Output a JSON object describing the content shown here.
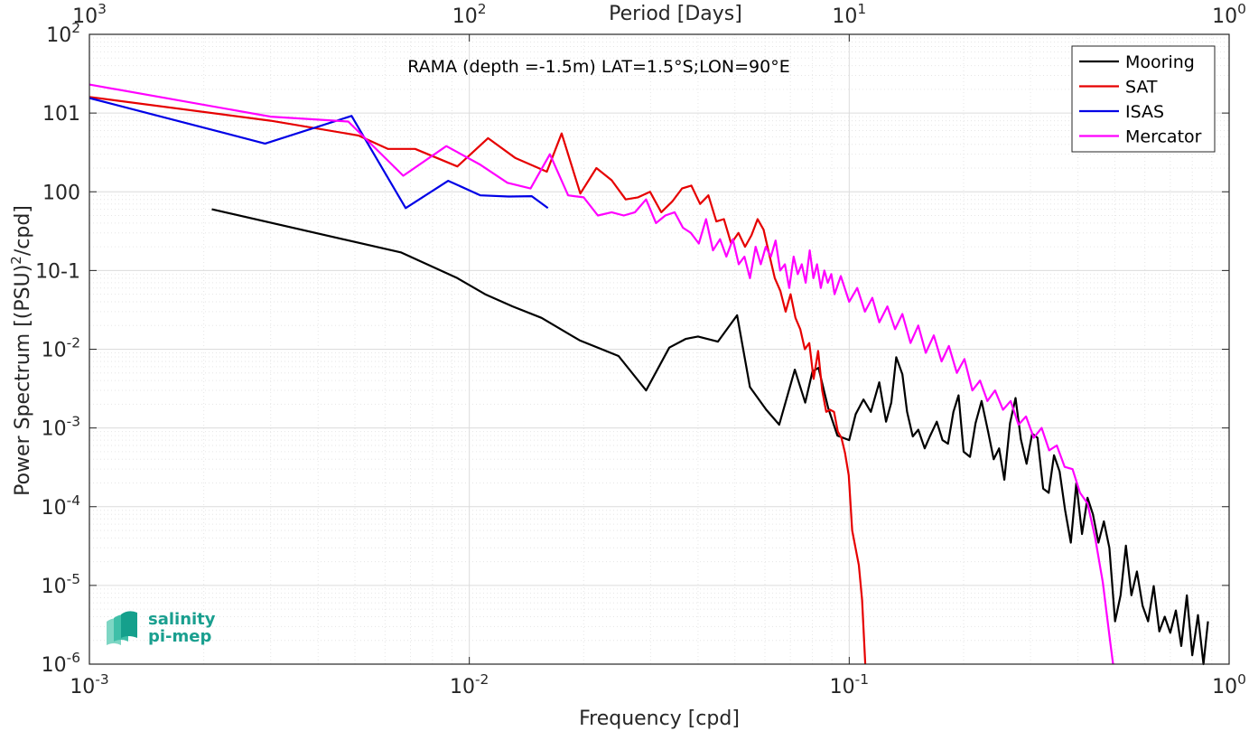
{
  "chart_data": {
    "type": "line",
    "title": "RAMA (depth =-1.5m) LAT=1.5°S;LON=90°E",
    "xlabel": "Frequency [cpd]",
    "ylabel": "Power Spectrum [(PSU)²/cpd]",
    "top_xlabel": "Period [Days]",
    "xscale": "log",
    "yscale": "log",
    "xlim": [
      0.001,
      1
    ],
    "ylim": [
      1e-06,
      100
    ],
    "grid": true,
    "legend_position": "top-right",
    "x_ticks": [
      {
        "value": 0.001,
        "base": "10",
        "exp": "-3"
      },
      {
        "value": 0.01,
        "base": "10",
        "exp": "-2"
      },
      {
        "value": 0.1,
        "base": "10",
        "exp": "-1"
      },
      {
        "value": 1,
        "base": "10",
        "exp": "0"
      }
    ],
    "top_ticks": [
      {
        "period": 1000,
        "base": "10",
        "exp": "3"
      },
      {
        "period": 100,
        "base": "10",
        "exp": "2"
      },
      {
        "period": 10,
        "base": "10",
        "exp": "1"
      },
      {
        "period": 1,
        "base": "10",
        "exp": "0"
      }
    ],
    "y_ticks": [
      {
        "value": 1e-06,
        "base": "10",
        "exp": "-6"
      },
      {
        "value": 1e-05,
        "base": "10",
        "exp": "-5"
      },
      {
        "value": 0.0001,
        "base": "10",
        "exp": "-4"
      },
      {
        "value": 0.001,
        "base": "10",
        "exp": "-3"
      },
      {
        "value": 0.01,
        "base": "10",
        "exp": "-2"
      },
      {
        "value": 0.1,
        "base": "",
        "exp": "",
        "label": "10-1"
      },
      {
        "value": 1,
        "base": "",
        "exp": "",
        "label": "100"
      },
      {
        "value": 10,
        "base": "",
        "exp": "",
        "label": "101"
      },
      {
        "value": 100,
        "base": "10",
        "exp": "2"
      }
    ],
    "series": [
      {
        "name": "Mooring",
        "color": "#000000",
        "x": [
          0.0021,
          0.0066,
          0.0093,
          0.011,
          0.013,
          0.0155,
          0.0195,
          0.0247,
          0.0292,
          0.0336,
          0.0371,
          0.04,
          0.0451,
          0.0507,
          0.0548,
          0.0605,
          0.0654,
          0.0719,
          0.0766,
          0.08,
          0.083,
          0.088,
          0.0931,
          0.1,
          0.104,
          0.109,
          0.114,
          0.12,
          0.125,
          0.129,
          0.133,
          0.138,
          0.142,
          0.147,
          0.152,
          0.158,
          0.163,
          0.17,
          0.176,
          0.182,
          0.188,
          0.194,
          0.2,
          0.208,
          0.215,
          0.223,
          0.232,
          0.24,
          0.248,
          0.256,
          0.265,
          0.274,
          0.283,
          0.293,
          0.303,
          0.313,
          0.324,
          0.335,
          0.346,
          0.358,
          0.37,
          0.383,
          0.396,
          0.41,
          0.424,
          0.438,
          0.453,
          0.468,
          0.484,
          0.501,
          0.518,
          0.535,
          0.553,
          0.572,
          0.592,
          0.612,
          0.633,
          0.655,
          0.677,
          0.7,
          0.724,
          0.748,
          0.774,
          0.8,
          0.828,
          0.856,
          0.88
        ],
        "y": [
          0.6,
          0.17,
          0.08,
          0.05,
          0.035,
          0.025,
          0.013,
          0.0082,
          0.003,
          0.0105,
          0.0135,
          0.0145,
          0.0125,
          0.027,
          0.0033,
          0.0017,
          0.0011,
          0.0055,
          0.0021,
          0.0052,
          0.0058,
          0.0018,
          0.0008,
          0.0007,
          0.0015,
          0.0023,
          0.0016,
          0.0038,
          0.0012,
          0.0021,
          0.0079,
          0.0048,
          0.0016,
          0.00078,
          0.00095,
          0.00055,
          0.00078,
          0.0012,
          0.0007,
          0.00063,
          0.0016,
          0.0026,
          0.0005,
          0.00043,
          0.00115,
          0.0022,
          0.0009,
          0.0004,
          0.00055,
          0.00022,
          0.00115,
          0.0024,
          0.00072,
          0.00035,
          0.00085,
          0.00075,
          0.00017,
          0.00015,
          0.00045,
          0.00028,
          9e-05,
          3.5e-05,
          0.0002,
          4.5e-05,
          0.00013,
          8e-05,
          3.5e-05,
          6.5e-05,
          3e-05,
          3.5e-06,
          7.5e-06,
          3.2e-05,
          7.5e-06,
          1.5e-05,
          5.5e-06,
          3.5e-06,
          9.8e-06,
          2.6e-06,
          4e-06,
          2.5e-06,
          4.8e-06,
          1.7e-06,
          7.5e-06,
          1.3e-06,
          4.2e-06,
          1e-06,
          3.5e-06
        ]
      },
      {
        "name": "SAT",
        "color": "#e60000",
        "x": [
          0.001,
          0.003,
          0.0051,
          0.0061,
          0.0072,
          0.0093,
          0.0112,
          0.0132,
          0.016,
          0.0175,
          0.0196,
          0.0216,
          0.0237,
          0.0258,
          0.0278,
          0.0299,
          0.032,
          0.0342,
          0.0363,
          0.0384,
          0.0405,
          0.0426,
          0.0447,
          0.0468,
          0.0489,
          0.0511,
          0.0532,
          0.0553,
          0.0574,
          0.0595,
          0.0616,
          0.0637,
          0.0659,
          0.068,
          0.0701,
          0.0722,
          0.0743,
          0.0764,
          0.0785,
          0.0806,
          0.0828,
          0.0849,
          0.087,
          0.0891,
          0.0912,
          0.0933,
          0.0954,
          0.0975,
          0.0997,
          0.1018,
          0.1039,
          0.106,
          0.1081,
          0.1102
        ],
        "y": [
          16,
          8,
          5.2,
          3.5,
          3.5,
          2.1,
          4.8,
          2.7,
          1.8,
          5.5,
          0.95,
          2.0,
          1.4,
          0.8,
          0.85,
          1.0,
          0.55,
          0.75,
          1.1,
          1.2,
          0.7,
          0.9,
          0.42,
          0.45,
          0.22,
          0.3,
          0.2,
          0.28,
          0.45,
          0.33,
          0.16,
          0.08,
          0.055,
          0.03,
          0.05,
          0.025,
          0.018,
          0.01,
          0.012,
          0.0042,
          0.0095,
          0.003,
          0.0016,
          0.0017,
          0.0016,
          0.0009,
          0.00075,
          0.00048,
          0.00025,
          5e-05,
          3e-05,
          1.8e-05,
          6.5e-06,
          1e-06
        ]
      },
      {
        "name": "ISAS",
        "color": "#0000e6",
        "x": [
          0.001,
          0.0029,
          0.0049,
          0.0068,
          0.0088,
          0.0107,
          0.0127,
          0.0146,
          0.0161
        ],
        "y": [
          15.5,
          4.1,
          9.2,
          0.62,
          1.38,
          0.9,
          0.87,
          0.88,
          0.62
        ]
      },
      {
        "name": "Mercator",
        "color": "#ff00ff",
        "x": [
          0.001,
          0.003,
          0.0048,
          0.0067,
          0.0087,
          0.0107,
          0.0126,
          0.0145,
          0.0163,
          0.0182,
          0.02,
          0.0218,
          0.0237,
          0.0255,
          0.0273,
          0.0292,
          0.031,
          0.0328,
          0.0347,
          0.0365,
          0.0383,
          0.0402,
          0.042,
          0.0438,
          0.0457,
          0.0475,
          0.0494,
          0.0512,
          0.053,
          0.0548,
          0.0567,
          0.0585,
          0.0603,
          0.0622,
          0.064,
          0.0658,
          0.0677,
          0.0695,
          0.0714,
          0.0732,
          0.075,
          0.0768,
          0.0787,
          0.0805,
          0.0823,
          0.0842,
          0.086,
          0.0878,
          0.0897,
          0.0915,
          0.095,
          0.1,
          0.105,
          0.11,
          0.115,
          0.12,
          0.126,
          0.132,
          0.138,
          0.145,
          0.152,
          0.159,
          0.167,
          0.175,
          0.183,
          0.192,
          0.201,
          0.211,
          0.221,
          0.231,
          0.242,
          0.254,
          0.266,
          0.279,
          0.292,
          0.306,
          0.321,
          0.336,
          0.352,
          0.369,
          0.387,
          0.405,
          0.424,
          0.444,
          0.465,
          0.487,
          0.495
        ],
        "y": [
          23,
          9.0,
          7.8,
          1.6,
          3.8,
          2.2,
          1.3,
          1.1,
          3.0,
          0.9,
          0.85,
          0.5,
          0.55,
          0.5,
          0.55,
          0.8,
          0.4,
          0.5,
          0.55,
          0.35,
          0.3,
          0.22,
          0.45,
          0.18,
          0.25,
          0.15,
          0.25,
          0.12,
          0.15,
          0.08,
          0.2,
          0.12,
          0.2,
          0.15,
          0.24,
          0.1,
          0.12,
          0.06,
          0.15,
          0.09,
          0.12,
          0.07,
          0.18,
          0.08,
          0.12,
          0.06,
          0.1,
          0.07,
          0.09,
          0.05,
          0.085,
          0.04,
          0.06,
          0.03,
          0.045,
          0.022,
          0.035,
          0.018,
          0.028,
          0.012,
          0.02,
          0.009,
          0.015,
          0.007,
          0.011,
          0.005,
          0.0075,
          0.003,
          0.004,
          0.0022,
          0.003,
          0.0017,
          0.0022,
          0.0011,
          0.0014,
          0.00075,
          0.001,
          0.00052,
          0.0006,
          0.00032,
          0.0003,
          0.00015,
          0.00011,
          4e-05,
          1.1e-05,
          1.8e-06,
          1e-06
        ]
      }
    ]
  },
  "logo": {
    "word1": "salinity",
    "word2": "pi-mep"
  },
  "colors": {
    "grid": "#dcdcdc",
    "axis": "#262626"
  }
}
